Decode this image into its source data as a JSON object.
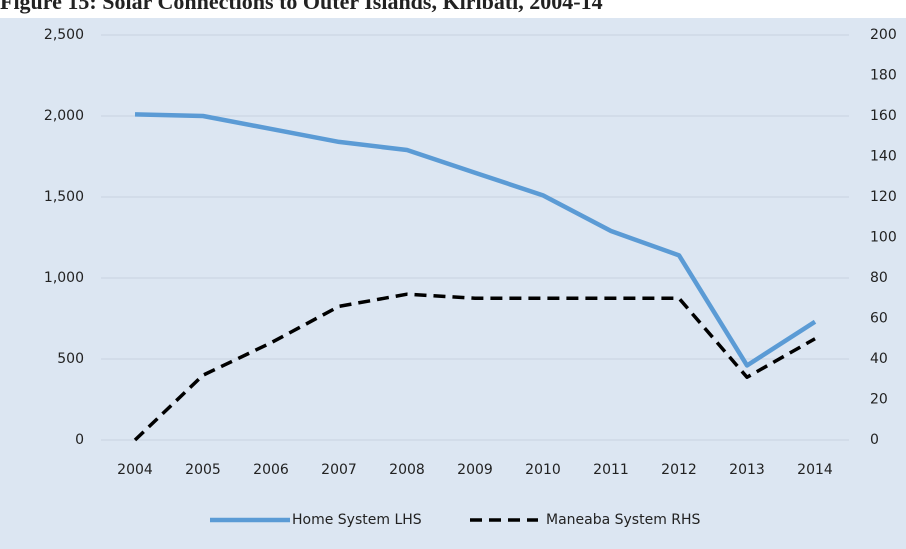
{
  "chart_data": {
    "type": "line",
    "title": "Figure 15: Solar Connections to Outer Islands, Kiribati, 2004-14",
    "categories": [
      "2004",
      "2005",
      "2006",
      "2007",
      "2008",
      "2009",
      "2010",
      "2011",
      "2012",
      "2013",
      "2014"
    ],
    "series": [
      {
        "name": "Home System LHS",
        "color": "#5b9bd5",
        "axis": "y",
        "values": [
          2010,
          2000,
          1920,
          1840,
          1790,
          1650,
          1510,
          1290,
          1140,
          460,
          730
        ]
      },
      {
        "name": "Maneaba System RHS",
        "color": "#000000",
        "axis": "y2",
        "dashed": true,
        "values": [
          0,
          32,
          48,
          66,
          72,
          70,
          70,
          70,
          70,
          31,
          50
        ]
      }
    ],
    "ylim": [
      0,
      2500
    ],
    "yticks": [
      0,
      {
        "value": 500,
        "label": "500"
      },
      {
        "value": 1000,
        "label": "1,000"
      },
      {
        "value": 1500,
        "label": "1,500"
      },
      {
        "value": 2000,
        "label": "2,000"
      },
      {
        "value": 2500,
        "label": "2,500"
      }
    ],
    "y2lim": [
      0,
      200
    ],
    "y2ticks": [
      0,
      20,
      40,
      60,
      80,
      100,
      120,
      140,
      160,
      180,
      200
    ],
    "grid": true,
    "legend": "bottom"
  }
}
